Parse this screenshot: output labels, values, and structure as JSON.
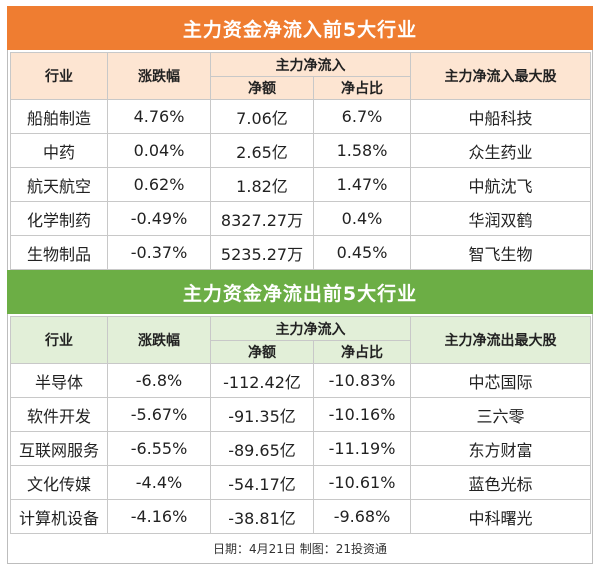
{
  "inflow": {
    "title": "主力资金净流入前5大行业",
    "headers": {
      "industry": "行业",
      "change": "涨跌幅",
      "group": "主力净流入",
      "amount": "净额",
      "ratio": "净占比",
      "top_stock": "主力净流入最大股"
    },
    "rows": [
      {
        "industry": "船舶制造",
        "change": "4.76%",
        "amount": "7.06亿",
        "ratio": "6.7%",
        "stock": "中船科技"
      },
      {
        "industry": "中药",
        "change": "0.04%",
        "amount": "2.65亿",
        "ratio": "1.58%",
        "stock": "众生药业"
      },
      {
        "industry": "航天航空",
        "change": "0.62%",
        "amount": "1.82亿",
        "ratio": "1.47%",
        "stock": "中航沈飞"
      },
      {
        "industry": "化学制药",
        "change": "-0.49%",
        "amount": "8327.27万",
        "ratio": "0.4%",
        "stock": "华润双鹤"
      },
      {
        "industry": "生物制品",
        "change": "-0.37%",
        "amount": "5235.27万",
        "ratio": "0.45%",
        "stock": "智飞生物"
      }
    ]
  },
  "outflow": {
    "title": "主力资金净流出前5大行业",
    "headers": {
      "industry": "行业",
      "change": "涨跌幅",
      "group": "主力净流入",
      "amount": "净额",
      "ratio": "净占比",
      "top_stock": "主力净流出最大股"
    },
    "rows": [
      {
        "industry": "半导体",
        "change": "-6.8%",
        "amount": "-112.42亿",
        "ratio": "-10.83%",
        "stock": "中芯国际"
      },
      {
        "industry": "软件开发",
        "change": "-5.67%",
        "amount": "-91.35亿",
        "ratio": "-10.16%",
        "stock": "三六零"
      },
      {
        "industry": "互联网服务",
        "change": "-6.55%",
        "amount": "-89.65亿",
        "ratio": "-11.19%",
        "stock": "东方财富"
      },
      {
        "industry": "文化传媒",
        "change": "-4.4%",
        "amount": "-54.17亿",
        "ratio": "-10.61%",
        "stock": "蓝色光标"
      },
      {
        "industry": "计算机设备",
        "change": "-4.16%",
        "amount": "-38.81亿",
        "ratio": "-9.68%",
        "stock": "中科曙光"
      }
    ]
  },
  "footer": "日期：4月21日 制图：21投资通",
  "colors": {
    "inflow_banner": "#ef7d31",
    "inflow_header": "#fde5d2",
    "outflow_banner": "#6cae45",
    "outflow_header": "#e2efd8"
  }
}
